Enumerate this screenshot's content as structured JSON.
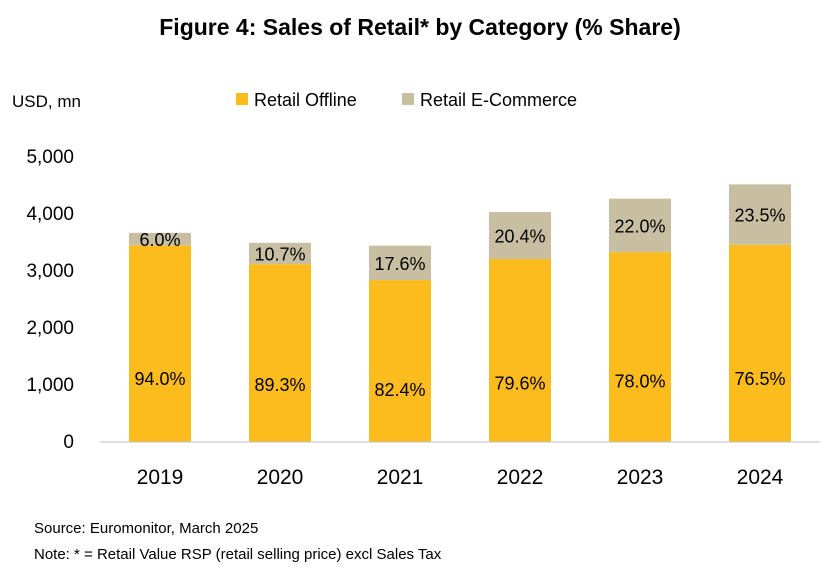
{
  "chart_data": {
    "type": "bar",
    "stacked": true,
    "title": "Figure 4: Sales of Retail* by Category (% Share)",
    "ylabel": "USD, mn",
    "xlabel": "",
    "ylim": [
      0,
      5000
    ],
    "yticks": [
      0,
      1000,
      2000,
      3000,
      4000,
      5000
    ],
    "ytick_labels": [
      "0",
      "1,000",
      "2,000",
      "3,000",
      "4,000",
      "5,000"
    ],
    "grid": false,
    "legend_position": "top",
    "categories": [
      "2019",
      "2020",
      "2021",
      "2022",
      "2023",
      "2024"
    ],
    "series": [
      {
        "name": "Retail Offline",
        "color": "#FDBC1D",
        "values": [
          3450,
          3120,
          2840,
          3210,
          3330,
          3460
        ],
        "labels": [
          "94.0%",
          "89.3%",
          "82.4%",
          "79.6%",
          "78.0%",
          "76.5%"
        ]
      },
      {
        "name": "Retail E-Commerce",
        "color": "#C8BFA3",
        "values": [
          220,
          375,
          605,
          825,
          940,
          1060
        ],
        "labels": [
          "6.0%",
          "10.7%",
          "17.6%",
          "20.4%",
          "22.0%",
          "23.5%"
        ]
      }
    ]
  },
  "footnotes": {
    "source": "Source: Euromonitor, March 2025",
    "note": "Note: * = Retail Value RSP (retail selling price) excl Sales Tax"
  }
}
